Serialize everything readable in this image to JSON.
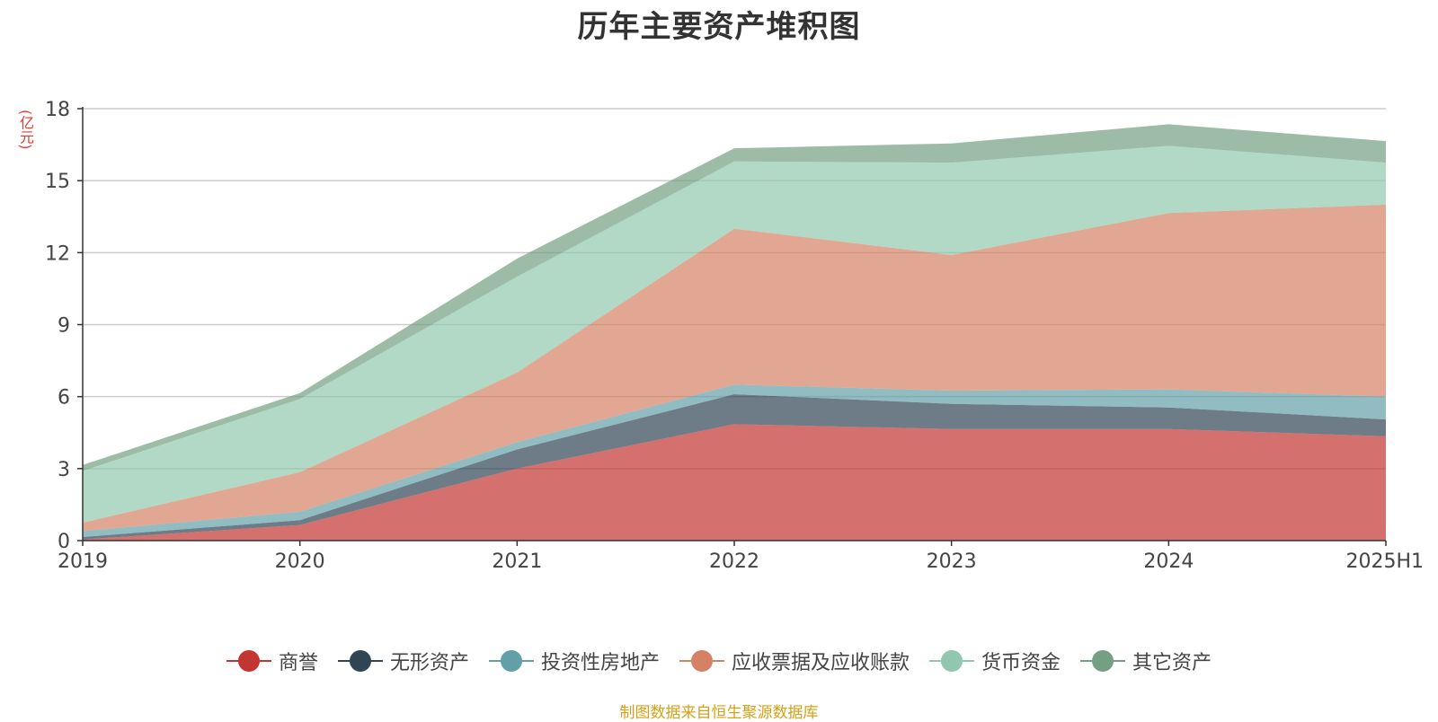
{
  "chart_data": {
    "type": "area",
    "stacked": true,
    "title": "历年主要资产堆积图",
    "unit_label": "(亿元)",
    "source_note": "制图数据来自恒生聚源数据库",
    "categories": [
      "2019",
      "2020",
      "2021",
      "2022",
      "2023",
      "2024",
      "2025H1"
    ],
    "ylim": [
      0,
      18
    ],
    "yticks": [
      0,
      3,
      6,
      9,
      12,
      15,
      18
    ],
    "grid": true,
    "legend_position": "bottom",
    "series": [
      {
        "name": "商誉",
        "color": "#c23531",
        "values": [
          0.05,
          0.65,
          3.0,
          4.85,
          4.65,
          4.65,
          4.35
        ]
      },
      {
        "name": "无形资产",
        "color": "#2f4554",
        "values": [
          0.1,
          0.2,
          0.8,
          1.25,
          1.05,
          0.9,
          0.7
        ]
      },
      {
        "name": "投资性房地产",
        "color": "#61a0a8",
        "values": [
          0.25,
          0.35,
          0.3,
          0.4,
          0.55,
          0.75,
          0.95
        ]
      },
      {
        "name": "应收票据及应收账款",
        "color": "#d48265",
        "values": [
          0.35,
          1.65,
          2.9,
          6.5,
          5.65,
          7.35,
          8.0
        ]
      },
      {
        "name": "货币资金",
        "color": "#91c7ae",
        "values": [
          2.15,
          3.05,
          4.0,
          2.8,
          3.85,
          2.8,
          1.75
        ]
      },
      {
        "name": "其它资产",
        "color": "#749f83",
        "values": [
          0.25,
          0.25,
          0.75,
          0.55,
          0.8,
          0.9,
          0.9
        ]
      }
    ]
  }
}
